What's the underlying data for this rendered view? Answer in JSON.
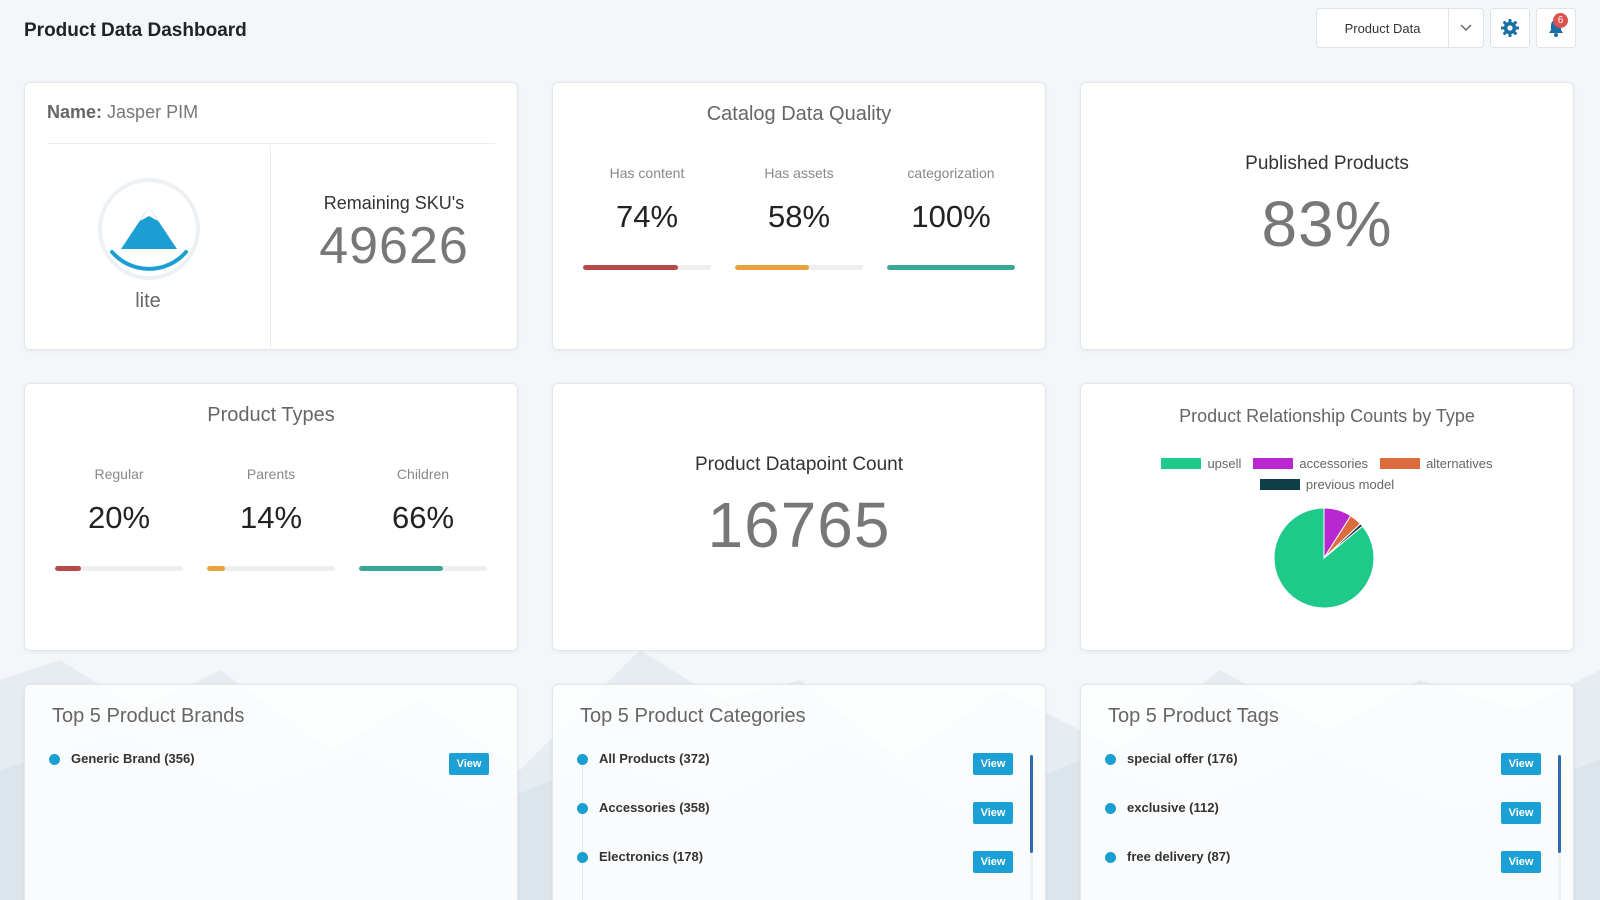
{
  "header": {
    "title": "Product Data Dashboard",
    "dataset_select": "Product Data",
    "notifications_count": "6"
  },
  "identity": {
    "name_label": "Name:",
    "name_value": "Jasper PIM",
    "edition": "lite",
    "remaining_label": "Remaining SKU's",
    "remaining_value": "49626"
  },
  "catalog_quality": {
    "title": "Catalog Data Quality",
    "metrics": [
      {
        "label": "Has content",
        "value": "74%",
        "fraction": 0.74,
        "color": "#b64a4a"
      },
      {
        "label": "Has assets",
        "value": "58%",
        "fraction": 0.58,
        "color": "#e9a23b"
      },
      {
        "label": "categorization",
        "value": "100%",
        "fraction": 1.0,
        "color": "#3aa696"
      }
    ]
  },
  "published": {
    "label": "Published Products",
    "value": "83%"
  },
  "product_types": {
    "title": "Product Types",
    "metrics": [
      {
        "label": "Regular",
        "value": "20%",
        "fraction": 0.2,
        "color": "#b64a4a"
      },
      {
        "label": "Parents",
        "value": "14%",
        "fraction": 0.14,
        "color": "#e9a23b"
      },
      {
        "label": "Children",
        "value": "66%",
        "fraction": 0.66,
        "color": "#3aa696"
      }
    ]
  },
  "datapoints": {
    "label": "Product Datapoint Count",
    "value": "16765"
  },
  "relationships": {
    "title": "Product Relationship Counts by Type",
    "legend": [
      {
        "label": "upsell",
        "color": "#1ec98a"
      },
      {
        "label": "accessories",
        "color": "#b827cf"
      },
      {
        "label": "alternatives",
        "color": "#dd6b3d"
      },
      {
        "label": "previous model",
        "color": "#0e3e4a"
      }
    ]
  },
  "chart_data": {
    "type": "pie",
    "title": "Product Relationship Counts by Type",
    "categories": [
      "upsell",
      "accessories",
      "alternatives",
      "previous model"
    ],
    "values": [
      86,
      9,
      4,
      1
    ],
    "colors": [
      "#1ec98a",
      "#b827cf",
      "#dd6b3d",
      "#0e3e4a"
    ],
    "legend": "top"
  },
  "brands": {
    "title": "Top 5 Product Brands",
    "items": [
      {
        "label": "Generic Brand (356)",
        "button": "View"
      }
    ]
  },
  "categories": {
    "title": "Top 5 Product Categories",
    "items": [
      {
        "label": "All Products (372)",
        "button": "View"
      },
      {
        "label": "Accessories (358)",
        "button": "View"
      },
      {
        "label": "Electronics (178)",
        "button": "View"
      }
    ]
  },
  "tags": {
    "title": "Top 5 Product Tags",
    "items": [
      {
        "label": "special offer (176)",
        "button": "View"
      },
      {
        "label": "exclusive (112)",
        "button": "View"
      },
      {
        "label": "free delivery (87)",
        "button": "View"
      }
    ]
  }
}
